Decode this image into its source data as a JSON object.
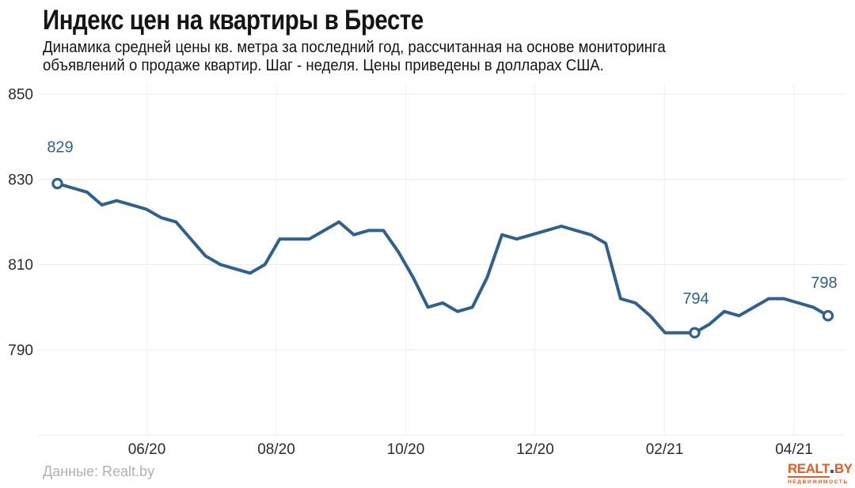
{
  "page": {
    "title": "Индекс цен на квартиры в Бресте",
    "subtitle_line1": "Динамика средней цены кв. метра за последний год, рассчитанная на основе мониторинга",
    "subtitle_line2": "объявлений о продаже квартир. Шаг - неделя. Цены приведены в долларах США.",
    "source": "Данные: Realt.by",
    "logo": {
      "main": "REALT",
      "suffix": "BY",
      "tagline": "НЕДВИЖИМОСТЬ"
    }
  },
  "colors": {
    "line": "#2e618f",
    "annotation": "#2e618f",
    "marker_fill": "#ffffff",
    "grid_horizontal": "#ebebeb",
    "grid_vertical": "#f2f2f2",
    "axis_text": "#2b2b2b",
    "source_text": "#b1b1b1",
    "logo_orange": "#e65c25",
    "logo_blue": "#2d5f8d"
  },
  "chart_data": {
    "type": "line",
    "title": "Индекс цен на квартиры в Бресте",
    "subtitle": "Динамика средней цены кв. метра за последний год, рассчитанная на основе мониторинга объявлений о продаже квартир. Шаг - неделя. Цены приведены в долларах США.",
    "unit": "доллары США за кв. метр",
    "step": "неделя",
    "x_ticks": [
      "06/20",
      "08/20",
      "10/20",
      "12/20",
      "02/21",
      "04/21"
    ],
    "y_ticks": [
      850,
      830,
      810,
      790
    ],
    "ylim": [
      770,
      850
    ],
    "grid": true,
    "values": [
      829,
      828,
      827,
      824,
      825,
      824,
      823,
      821,
      820,
      816,
      812,
      810,
      809,
      808,
      810,
      816,
      816,
      816,
      818,
      820,
      817,
      818,
      818,
      813,
      807,
      800,
      801,
      799,
      800,
      807,
      817,
      816,
      817,
      818,
      819,
      818,
      817,
      815,
      802,
      801,
      798,
      794,
      794,
      794,
      796,
      799,
      798,
      800,
      802,
      802,
      801,
      800,
      798
    ],
    "markers": [
      {
        "index": 0,
        "label": "829"
      },
      {
        "index": 43,
        "label": "794"
      },
      {
        "index": 52,
        "label": "798"
      }
    ],
    "source": "Данные: Realt.by"
  }
}
